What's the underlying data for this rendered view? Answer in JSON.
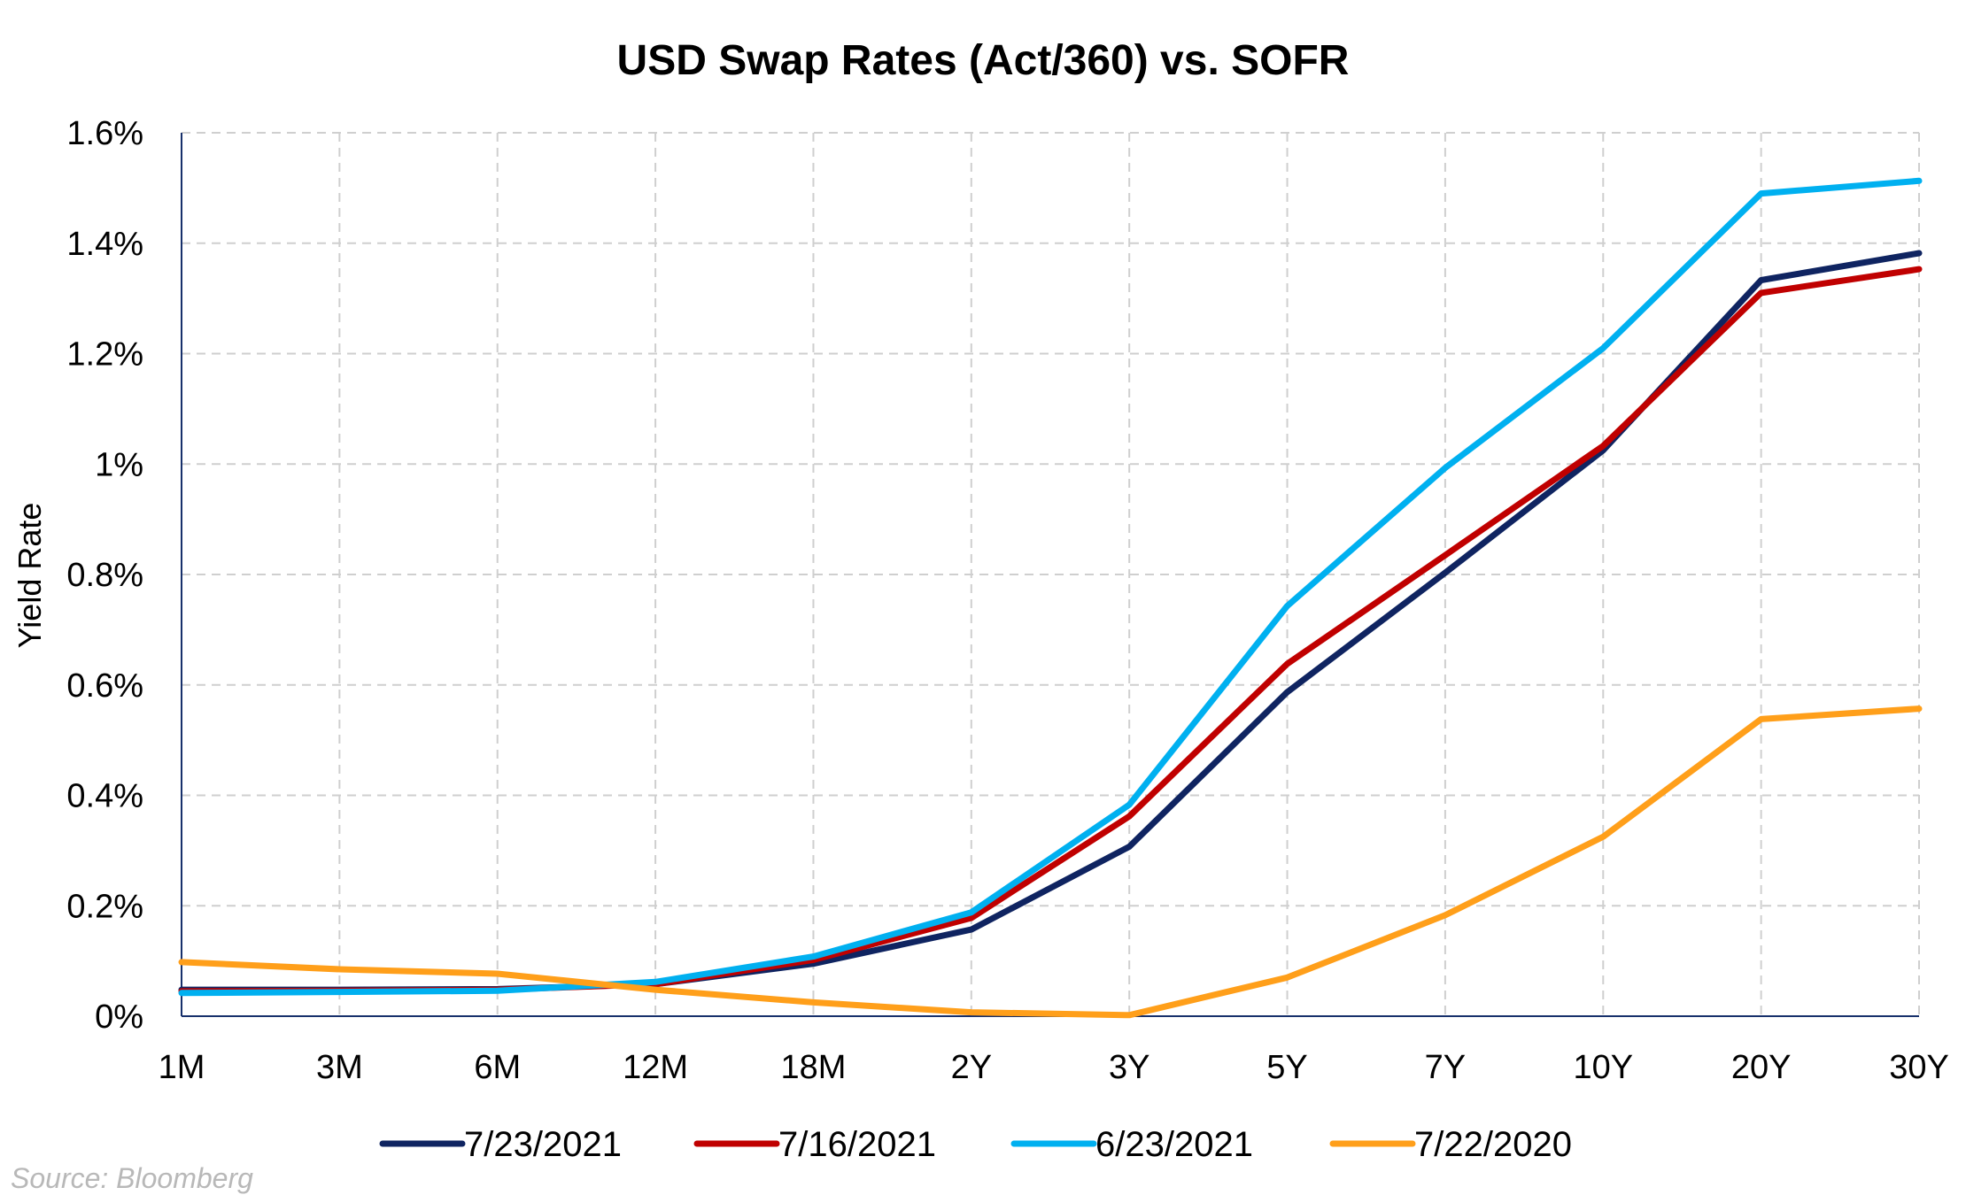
{
  "chart_data": {
    "type": "line",
    "title": "USD Swap Rates (Act/360) vs. SOFR",
    "ylabel": "Yield Rate",
    "xlabel": "",
    "categories": [
      "1M",
      "3M",
      "6M",
      "12M",
      "18M",
      "2Y",
      "3Y",
      "5Y",
      "7Y",
      "10Y",
      "20Y",
      "30Y"
    ],
    "ylim": [
      0,
      1.6
    ],
    "yticks": [
      {
        "value": 0,
        "label": "0%"
      },
      {
        "value": 0.2,
        "label": "0.2%"
      },
      {
        "value": 0.4,
        "label": "0.4%"
      },
      {
        "value": 0.6,
        "label": "0.6%"
      },
      {
        "value": 0.8,
        "label": "0.8%"
      },
      {
        "value": 1.0,
        "label": "1%"
      },
      {
        "value": 1.2,
        "label": "1.2%"
      },
      {
        "value": 1.4,
        "label": "1.4%"
      },
      {
        "value": 1.6,
        "label": "1.6%"
      }
    ],
    "grid": true,
    "legend_position": "bottom",
    "series": [
      {
        "name": "7/23/2021",
        "color": "#0f2461",
        "values": [
          0.048,
          0.048,
          0.049,
          0.058,
          0.095,
          0.157,
          0.307,
          0.587,
          0.803,
          1.025,
          1.333,
          1.382
        ]
      },
      {
        "name": "7/16/2021",
        "color": "#c00000",
        "values": [
          0.045,
          0.046,
          0.048,
          0.058,
          0.102,
          0.178,
          0.362,
          0.638,
          0.835,
          1.033,
          1.31,
          1.353
        ]
      },
      {
        "name": "6/23/2021",
        "color": "#00b0f0",
        "values": [
          0.042,
          0.044,
          0.046,
          0.062,
          0.108,
          0.188,
          0.383,
          0.743,
          0.993,
          1.21,
          1.49,
          1.513
        ]
      },
      {
        "name": "7/22/2020",
        "color": "#ff9f1a",
        "values": [
          0.098,
          0.085,
          0.077,
          0.048,
          0.025,
          0.007,
          0.002,
          0.07,
          0.183,
          0.325,
          0.538,
          0.557
        ]
      }
    ]
  },
  "source_note": "Source: Bloomberg"
}
